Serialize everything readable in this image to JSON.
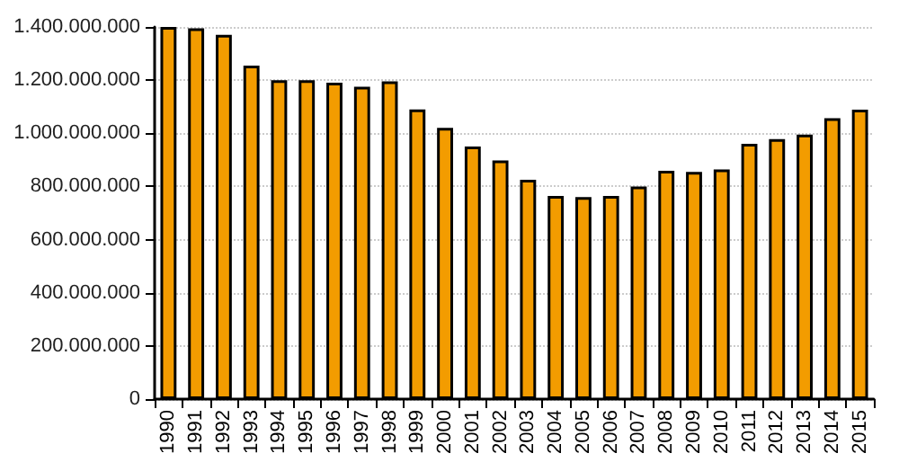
{
  "chart_data": {
    "type": "bar",
    "categories": [
      "1990",
      "1991",
      "1992",
      "1993",
      "1994",
      "1995",
      "1996",
      "1997",
      "1998",
      "1999",
      "2000",
      "2001",
      "2002",
      "2003",
      "2004",
      "2005",
      "2006",
      "2007",
      "2008",
      "2009",
      "2010",
      "2011",
      "2012",
      "2013",
      "2014",
      "2015"
    ],
    "values": [
      1400000000,
      1395000000,
      1370000000,
      1255000000,
      1200000000,
      1200000000,
      1190000000,
      1175000000,
      1195000000,
      1090000000,
      1020000000,
      950000000,
      898000000,
      825000000,
      764000000,
      760000000,
      764000000,
      800000000,
      859000000,
      855000000,
      864000000,
      960000000,
      978000000,
      995000000,
      1057000000,
      1089000000
    ],
    "color": "#f39c00",
    "ylim": [
      0,
      1400000000
    ],
    "yticks": [
      0,
      {
        "value": 200000000,
        "label": "200.000.000"
      },
      {
        "value": 400000000,
        "label": "400.000.000"
      },
      {
        "value": 600000000,
        "label": "600.000.000"
      },
      {
        "value": 800000000,
        "label": "800.000.000"
      },
      {
        "value": 1000000000,
        "label": "1.000.000.000"
      },
      {
        "value": 1200000000,
        "label": "1.200.000.000"
      },
      {
        "value": 1400000000,
        "label": "1.400.000.000"
      }
    ],
    "grid": "y"
  }
}
